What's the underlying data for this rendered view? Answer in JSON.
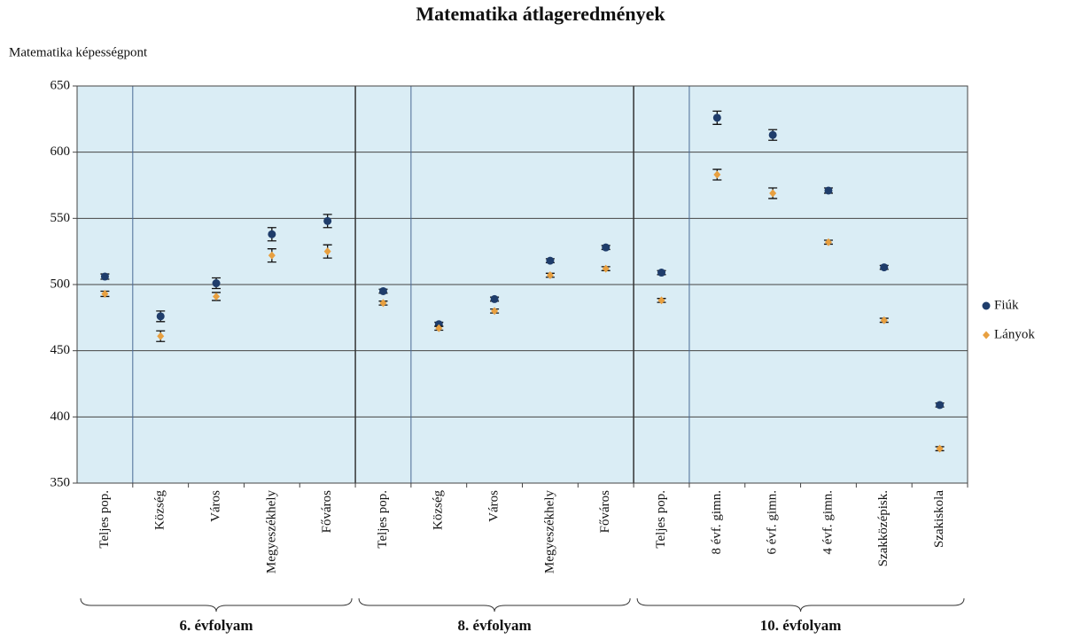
{
  "chart_data": {
    "type": "errorbar",
    "title": "Matematika átlageredmények",
    "y_label": "Matematika képességpont",
    "categories": [
      "Teljes pop.",
      "Község",
      "Város",
      "Megyeszékhely",
      "Főváros",
      "Teljes pop.",
      "Község",
      "Város",
      "Megyeszékhely",
      "Főváros",
      "Teljes pop.",
      "8 évf. gimn.",
      "6 évf. gimn.",
      "4 évf. gimn.",
      "Szakközépisk.",
      "Szakiskola"
    ],
    "groups": [
      {
        "name": "6. évfolyam",
        "size": 5
      },
      {
        "name": "8. évfolyam",
        "size": 5
      },
      {
        "name": "10. évfolyam",
        "size": 6
      }
    ],
    "series": [
      {
        "name": "Fiúk",
        "color": "#1f3d6b",
        "marker": "circle",
        "values": [
          506,
          476,
          501,
          538,
          548,
          495,
          470,
          489,
          518,
          528,
          509,
          626,
          613,
          571,
          513,
          409
        ],
        "errors": [
          2,
          4,
          4,
          5,
          5,
          1.5,
          1.5,
          1.5,
          1.5,
          1.5,
          1.5,
          5,
          4,
          2,
          1.5,
          1.5
        ]
      },
      {
        "name": "Lányok",
        "color": "#e8a040",
        "marker": "diamond",
        "values": [
          493,
          461,
          491,
          522,
          525,
          486,
          467,
          480,
          507,
          512,
          488,
          583,
          569,
          532,
          473,
          376
        ],
        "errors": [
          2,
          4,
          3,
          5,
          5,
          1.5,
          1.5,
          1.5,
          1.5,
          1.5,
          1.5,
          4,
          4,
          1.5,
          1.5,
          1.5
        ]
      }
    ],
    "ylim": [
      350,
      650
    ],
    "yticks": [
      350,
      400,
      450,
      500,
      550,
      600,
      650
    ],
    "grid": true,
    "legend": "right",
    "background": "#daedf5"
  }
}
